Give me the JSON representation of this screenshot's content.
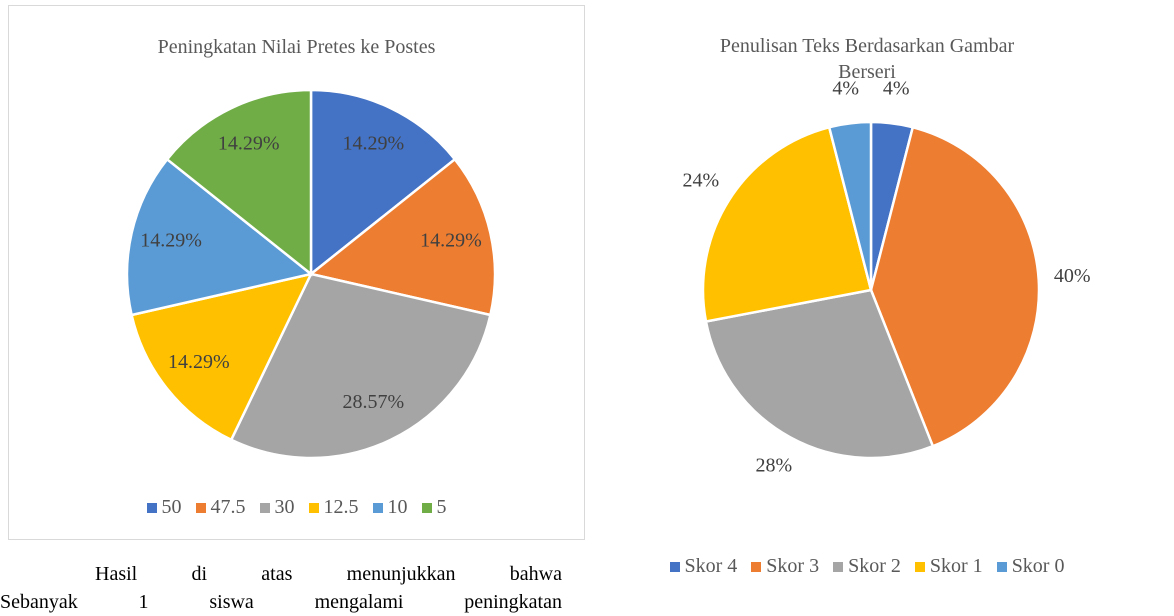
{
  "chart_data": [
    {
      "type": "pie",
      "title": "Peningkatan Nilai Pretes ke Postes",
      "categories": [
        "50",
        "47.5",
        "30",
        "12.5",
        "10",
        "5"
      ],
      "values": [
        14.29,
        14.29,
        28.57,
        14.29,
        14.29,
        14.29
      ],
      "value_labels": [
        "14.29%",
        "14.29%",
        "28.57%",
        "14.29%",
        "14.29%",
        "14.29%"
      ],
      "colors": [
        "#4472c4",
        "#ed7d31",
        "#a5a5a5",
        "#ffc000",
        "#5b9bd5",
        "#70ad47"
      ],
      "label_position": "inside",
      "legend": "bottom"
    },
    {
      "type": "pie",
      "title": "Penulisan Teks Berdasarkan Gambar Berseri",
      "categories": [
        "Skor 4",
        "Skor 3",
        "Skor 2",
        "Skor 1",
        "Skor 0"
      ],
      "values": [
        4,
        40,
        28,
        24,
        4
      ],
      "value_labels": [
        "4%",
        "40%",
        "28%",
        "24%",
        "4%"
      ],
      "colors": [
        "#4472c4",
        "#ed7d31",
        "#a5a5a5",
        "#ffc000",
        "#5b9bd5"
      ],
      "label_position": "outside",
      "legend": "bottom"
    }
  ],
  "paragraph": [
    "Hasil di atas menunjukkan bahwa",
    "Sebanyak 1 siswa mengalami peningkatan"
  ]
}
